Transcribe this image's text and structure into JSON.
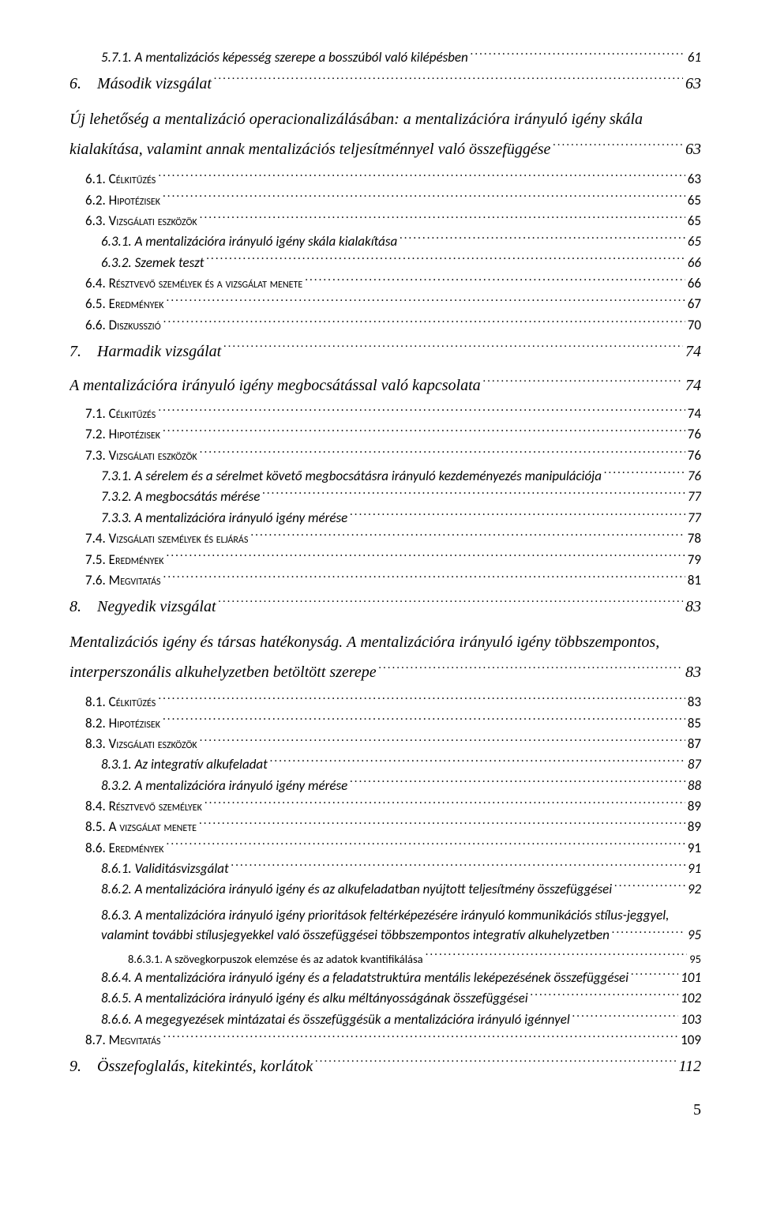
{
  "page_number": "5",
  "entries": [
    {
      "cls": "i2",
      "label": "5.7.1. A mentalizációs képesség szerepe a bosszúból való kilépésben",
      "page": "61"
    },
    {
      "cls": "i0",
      "label": "6. Második vizsgálat",
      "page": "63"
    },
    {
      "cls": "i0a just",
      "label": "Új lehetőség a mentalizáció operacionalizálásában: a mentalizációra irányuló igény skála kialakítása, valamint annak mentalizációs teljesítménnyel való összefüggése",
      "page": "63"
    },
    {
      "cls": "i1 sc",
      "label": "6.1. Célkitűzés",
      "page": "63"
    },
    {
      "cls": "i1 sc",
      "label": "6.2. Hipotézisek",
      "page": "65"
    },
    {
      "cls": "i1 sc",
      "label": "6.3. Vizsgálati eszközök",
      "page": "65"
    },
    {
      "cls": "i2",
      "label": "6.3.1. A mentalizációra irányuló igény skála kialakítása",
      "page": "65"
    },
    {
      "cls": "i2",
      "label": "6.3.2. Szemek teszt",
      "page": "66"
    },
    {
      "cls": "i1 sc",
      "label": "6.4. Résztvevő személyek és a vizsgálat menete",
      "page": "66"
    },
    {
      "cls": "i1 sc",
      "label": "6.5. Eredmények",
      "page": "67"
    },
    {
      "cls": "i1 sc",
      "label": "6.6. Diszkusszió",
      "page": "70"
    },
    {
      "cls": "i0",
      "label": "7. Harmadik vizsgálat",
      "page": "74"
    },
    {
      "cls": "i0a",
      "label": "A mentalizációra irányuló igény megbocsátással való kapcsolata",
      "page": "74"
    },
    {
      "cls": "i1 sc",
      "label": "7.1. Célkitűzés",
      "page": "74"
    },
    {
      "cls": "i1 sc",
      "label": "7.2. Hipotézisek",
      "page": "76"
    },
    {
      "cls": "i1 sc",
      "label": "7.3. Vizsgálati eszközök",
      "page": "76"
    },
    {
      "cls": "i2",
      "label": "7.3.1. A sérelem és a sérelmet követő megbocsátásra irányuló kezdeményezés manipulációja",
      "page": "76"
    },
    {
      "cls": "i2",
      "label": "7.3.2. A megbocsátás mérése",
      "page": "77"
    },
    {
      "cls": "i2",
      "label": "7.3.3. A mentalizációra irányuló igény mérése",
      "page": "77"
    },
    {
      "cls": "i1 sc",
      "label": "7.4. Vizsgálati személyek és eljárás",
      "page": "78"
    },
    {
      "cls": "i1 sc",
      "label": "7.5. Eredmények",
      "page": "79"
    },
    {
      "cls": "i1 sc",
      "label": "7.6. Megvitatás",
      "page": "81"
    },
    {
      "cls": "i0",
      "label": "8. Negyedik vizsgálat",
      "page": "83"
    },
    {
      "cls": "i0a just",
      "label": "Mentalizációs igény és társas hatékonyság. A mentalizációra irányuló igény többszempontos, interperszonális alkuhelyzetben betöltött szerepe",
      "page": "83"
    },
    {
      "cls": "i1 sc",
      "label": "8.1. Célkitűzés",
      "page": "83"
    },
    {
      "cls": "i1 sc",
      "label": "8.2. Hipotézisek",
      "page": "85"
    },
    {
      "cls": "i1 sc",
      "label": "8.3. Vizsgálati eszközök",
      "page": "87"
    },
    {
      "cls": "i2",
      "label": "8.3.1. Az integratív alkufeladat",
      "page": "87"
    },
    {
      "cls": "i2",
      "label": "8.3.2. A mentalizációra irányuló igény mérése",
      "page": "88"
    },
    {
      "cls": "i1 sc",
      "label": "8.4. Résztvevő személyek",
      "page": "89"
    },
    {
      "cls": "i1 sc",
      "label": "8.5. A vizsgálat menete",
      "page": "89"
    },
    {
      "cls": "i1 sc",
      "label": "8.6. Eredmények",
      "page": "91"
    },
    {
      "cls": "i2",
      "label": "8.6.1. Validitásvizsgálat",
      "page": "91"
    },
    {
      "cls": "i2",
      "label": "8.6.2. A mentalizációra irányuló igény és az alkufeladatban nyújtott teljesítmény összefüggései",
      "page": "92"
    },
    {
      "cls": "i2 just",
      "label": "8.6.3. A mentalizációra irányuló igény prioritások feltérképezésére irányuló kommunikációs stílus-jeggyel, valamint további stílusjegyekkel való összefüggései többszempontos integratív alkuhelyzetben",
      "page": "95"
    },
    {
      "cls": "i3",
      "label": "8.6.3.1. A szövegkorpuszok elemzése és az adatok kvantifikálása",
      "page": "95"
    },
    {
      "cls": "i2",
      "label": "8.6.4. A mentalizációra irányuló igény és a feladatstruktúra mentális leképezésének összefüggései",
      "page": "101"
    },
    {
      "cls": "i2",
      "label": "8.6.5. A mentalizációra irányuló igény és alku méltányosságának összefüggései",
      "page": "102"
    },
    {
      "cls": "i2",
      "label": "8.6.6. A megegyezések mintázatai és összefüggésük a mentalizációra irányuló igénnyel",
      "page": "103"
    },
    {
      "cls": "i1 sc",
      "label": "8.7. Megvitatás",
      "page": "109"
    },
    {
      "cls": "i0",
      "label": "9. Összefoglalás, kitekintés, korlátok",
      "page": "112"
    }
  ]
}
